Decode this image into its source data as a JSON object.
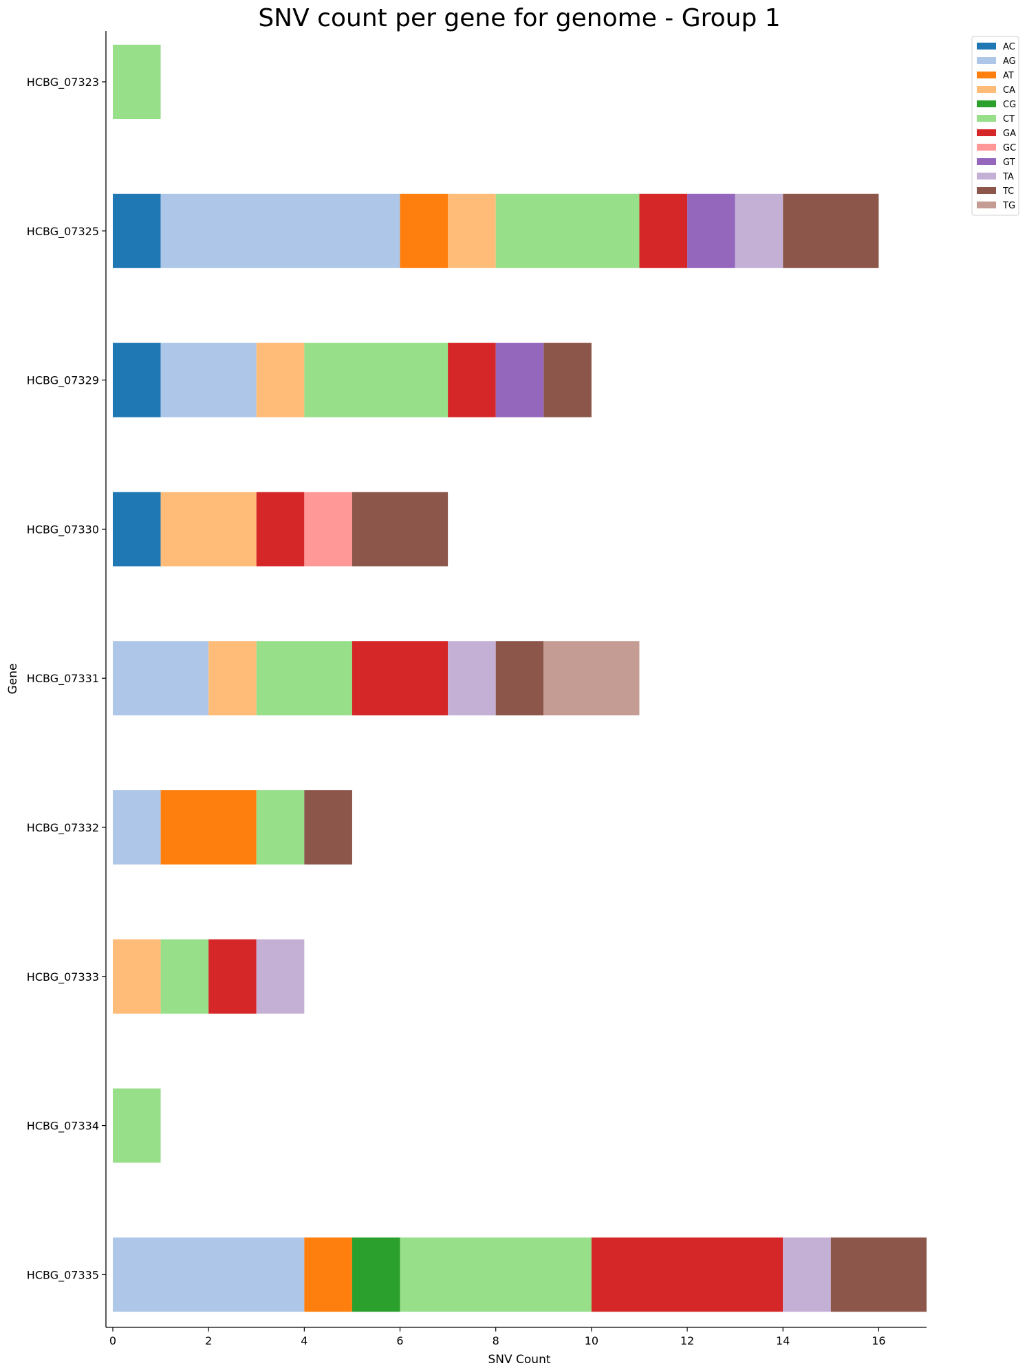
{
  "chart_data": {
    "type": "bar",
    "orientation": "horizontal",
    "stacked": true,
    "title": "SNV count per gene for genome - Group 1",
    "xlabel": "SNV Count",
    "ylabel": "Gene",
    "xlim": [
      0,
      17
    ],
    "xticks": [
      0,
      2,
      4,
      6,
      8,
      10,
      12,
      14,
      16
    ],
    "legend_position": "top-right outside",
    "grid": false,
    "categories": [
      "HCBG_07323",
      "HCBG_07325",
      "HCBG_07329",
      "HCBG_07330",
      "HCBG_07331",
      "HCBG_07332",
      "HCBG_07333",
      "HCBG_07334",
      "HCBG_07335"
    ],
    "series": [
      {
        "name": "AC",
        "color": "#1f77b4",
        "values": [
          0,
          1,
          1,
          1,
          0,
          0,
          0,
          0,
          0
        ]
      },
      {
        "name": "AG",
        "color": "#aec7e8",
        "values": [
          0,
          5,
          2,
          0,
          2,
          1,
          0,
          0,
          4
        ]
      },
      {
        "name": "AT",
        "color": "#ff7f0e",
        "values": [
          0,
          1,
          0,
          0,
          0,
          2,
          0,
          0,
          1
        ]
      },
      {
        "name": "CA",
        "color": "#ffbb78",
        "values": [
          0,
          1,
          1,
          2,
          1,
          0,
          1,
          0,
          0
        ]
      },
      {
        "name": "CG",
        "color": "#2ca02c",
        "values": [
          0,
          0,
          0,
          0,
          0,
          0,
          0,
          0,
          1
        ]
      },
      {
        "name": "CT",
        "color": "#98df8a",
        "values": [
          1,
          3,
          3,
          0,
          2,
          1,
          1,
          1,
          4
        ]
      },
      {
        "name": "GA",
        "color": "#d62728",
        "values": [
          0,
          1,
          1,
          1,
          2,
          0,
          1,
          0,
          4
        ]
      },
      {
        "name": "GC",
        "color": "#ff9896",
        "values": [
          0,
          0,
          0,
          1,
          0,
          0,
          0,
          0,
          0
        ]
      },
      {
        "name": "GT",
        "color": "#9467bd",
        "values": [
          0,
          1,
          1,
          0,
          0,
          0,
          0,
          0,
          0
        ]
      },
      {
        "name": "TA",
        "color": "#c5b0d5",
        "values": [
          0,
          1,
          0,
          0,
          1,
          0,
          1,
          0,
          1
        ]
      },
      {
        "name": "TC",
        "color": "#8c564b",
        "values": [
          0,
          2,
          1,
          2,
          1,
          1,
          0,
          0,
          2
        ]
      },
      {
        "name": "TG",
        "color": "#c49c94",
        "values": [
          0,
          0,
          0,
          0,
          2,
          0,
          0,
          0,
          0
        ]
      }
    ]
  }
}
